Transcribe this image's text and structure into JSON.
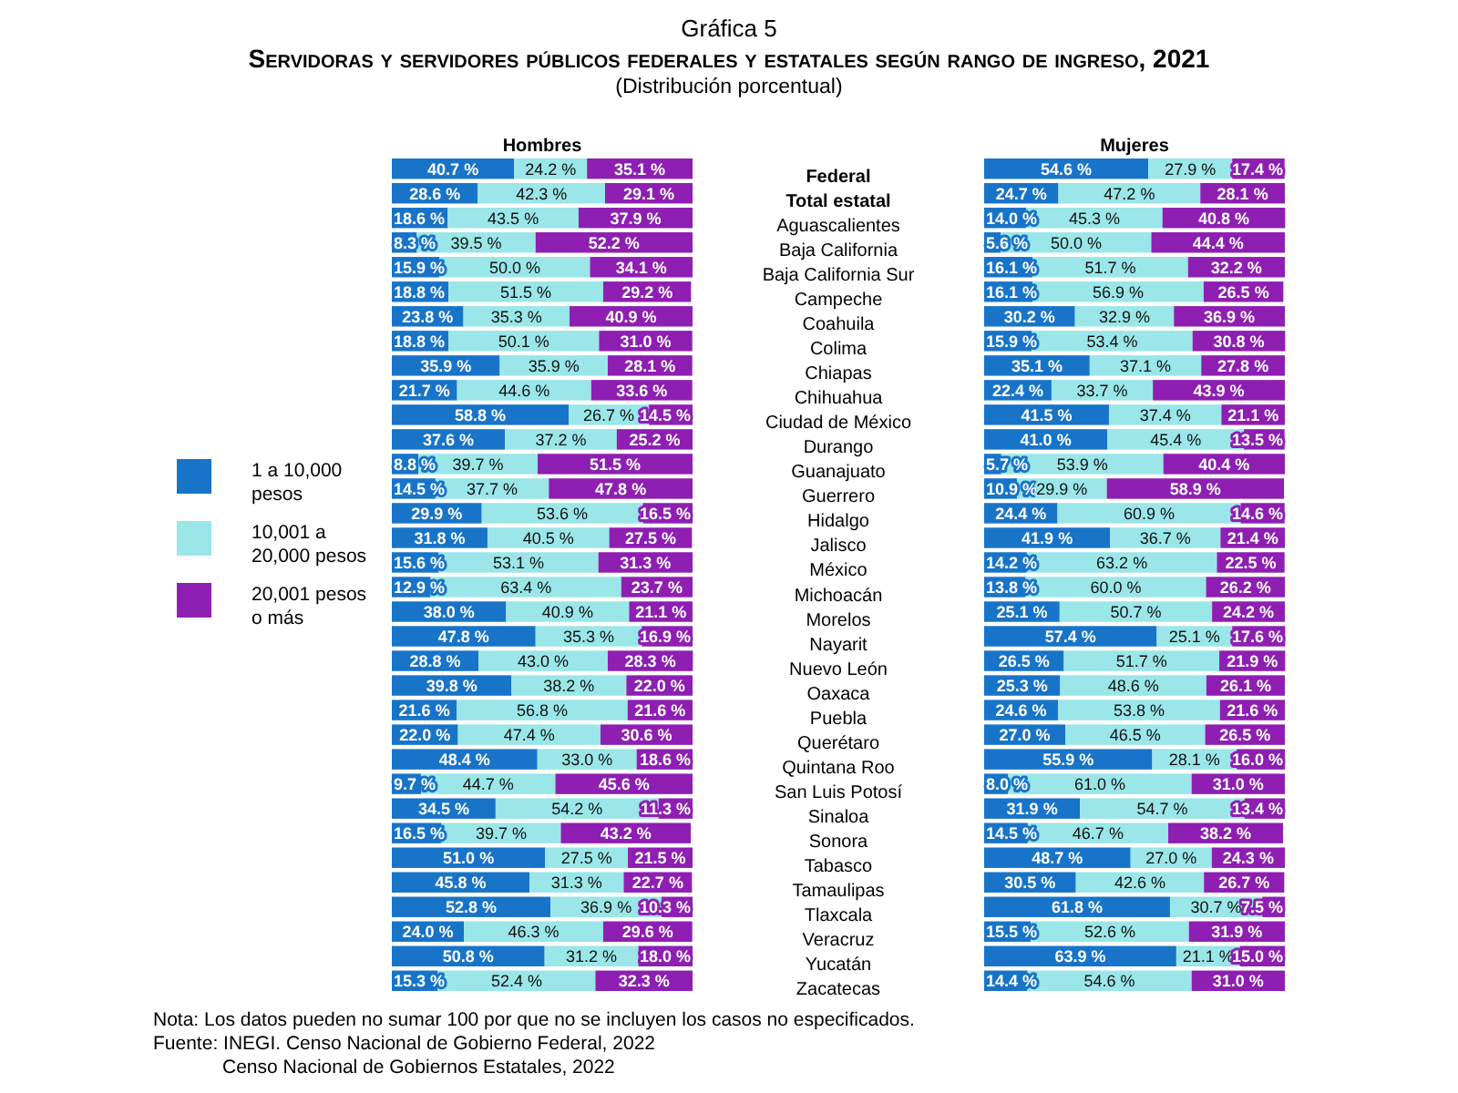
{
  "chart_data": [
    {
      "type": "other",
      "title": "Gráfica 5",
      "subtitle": "Servidoras y servidores públicos federales y estatales según rango de ingreso, 2021",
      "annotations": [
        "(Distribución porcentual)",
        "Nota:     Los datos pueden no sumar 100 por que no se incluyen los casos no especificados.",
        "Fuente: INEGI. Censo Nacional de Gobierno Federal, 2022",
        "Censo Nacional de Gobiernos Estatales, 2022"
      ]
    },
    {
      "type": "bar",
      "orientation": "horizontal",
      "stacked": true,
      "title": "Hombres",
      "legend": "left",
      "tick_labels": "y",
      "xlim": [
        0,
        100
      ],
      "categories": [
        "Federal",
        "Total estatal",
        "Aguascalientes",
        "Baja California",
        "Baja California Sur",
        "Campeche",
        "Coahuila",
        "Colima",
        "Chiapas",
        "Chihuahua",
        "Ciudad de México",
        "Durango",
        "Guanajuato",
        "Guerrero",
        "Hidalgo",
        "Jalisco",
        "México",
        "Michoacán",
        "Morelos",
        "Nayarit",
        "Nuevo León",
        "Oaxaca",
        "Puebla",
        "Querétaro",
        "Quintana Roo",
        "San Luis Potosí",
        "Sinaloa",
        "Sonora",
        "Tabasco",
        "Tamaulipas",
        "Tlaxcala",
        "Veracruz",
        "Yucatán",
        "Zacatecas"
      ],
      "series": [
        {
          "name": "1 a 10,000 pesos",
          "color": "#1874c8",
          "values": [
            40.7,
            28.6,
            18.6,
            8.3,
            15.9,
            18.8,
            23.8,
            18.8,
            35.9,
            21.7,
            58.8,
            37.6,
            8.8,
            14.5,
            29.9,
            31.8,
            15.6,
            12.9,
            38.0,
            47.8,
            28.8,
            39.8,
            21.6,
            22.0,
            48.4,
            9.7,
            34.5,
            16.5,
            51.0,
            45.8,
            52.8,
            24.0,
            50.8,
            15.3
          ],
          "value_labels": [
            "40.7 %",
            "28.6 %",
            "18.6 %",
            "8.3 %",
            "15.9 %",
            "18.8 %",
            "23.8 %",
            "18.8 %",
            "35.9 %",
            "21.7 %",
            "58.8 %",
            "37.6 %",
            "8.8 %",
            "14.5 %",
            "29.9 %",
            "31.8 %",
            "15.6 %",
            "12.9 %",
            "38.0 %",
            "47.8 %",
            "28.8 %",
            "39.8 %",
            "21.6 %",
            "22.0 %",
            "48.4 %",
            "9.7 %",
            "34.5 %",
            "16.5 %",
            "51.0 %",
            "45.8 %",
            "52.8 %",
            "24.0 %",
            "50.8 %",
            "15.3 %"
          ]
        },
        {
          "name": "10,001 a 20,000 pesos",
          "color": "#9ae6e8",
          "values": [
            24.2,
            42.3,
            43.5,
            39.5,
            50.0,
            51.5,
            35.3,
            50.1,
            35.9,
            44.6,
            26.7,
            37.2,
            39.7,
            37.7,
            53.6,
            40.5,
            53.1,
            63.4,
            40.9,
            35.3,
            43.0,
            38.2,
            56.8,
            47.4,
            33.0,
            44.7,
            54.2,
            39.7,
            27.5,
            31.3,
            36.9,
            46.3,
            31.2,
            52.4
          ],
          "value_labels": [
            "24.2 %",
            "42.3 %",
            "43.5 %",
            "39.5 %",
            "50.0 %",
            "51.5 %",
            "35.3 %",
            "50.1 %",
            "35.9 %",
            "44.6 %",
            "26.7 %",
            "37.2 %",
            "39.7 %",
            "37.7 %",
            "53.6 %",
            "40.5 %",
            "53.1 %",
            "63.4 %",
            "40.9 %",
            "35.3 %",
            "43.0 %",
            "38.2 %",
            "56.8 %",
            "47.4 %",
            "33.0 %",
            "44.7 %",
            "54.2 %",
            "39.7 %",
            "27.5 %",
            "31.3 %",
            "36.9 %",
            "46.3 %",
            "31.2 %",
            "52.4 %"
          ]
        },
        {
          "name": "20,001 pesos o más",
          "color": "#8e1fb2",
          "values": [
            35.1,
            29.1,
            37.9,
            52.2,
            34.1,
            29.2,
            40.9,
            31.0,
            28.1,
            33.6,
            14.5,
            25.2,
            51.5,
            47.8,
            16.5,
            27.5,
            31.3,
            23.7,
            21.1,
            16.9,
            28.3,
            22.0,
            21.6,
            30.6,
            18.6,
            45.6,
            11.3,
            43.2,
            21.5,
            22.7,
            10.3,
            29.6,
            18.0,
            32.3
          ],
          "value_labels": [
            "35.1 %",
            "29.1 %",
            "37.9 %",
            "52.2 %",
            "34.1 %",
            "29.2 %",
            "40.9 %",
            "31.0 %",
            "28.1 %",
            "33.6 %",
            "14.5 %",
            "25.2 %",
            "51.5 %",
            "47.8 %",
            "16.5 %",
            "27.5 %",
            "31.3 %",
            "23.7 %",
            "21.1 %",
            "16.9 %",
            "28.3 %",
            "22.0 %",
            "21.6 %",
            "30.6 %",
            "18.6 %",
            "45.6 %",
            "11.3 %",
            "43.2 %",
            "21.5 %",
            "22.7 %",
            "10.3 %",
            "29.6 %",
            "18.0 %",
            "32.3 %"
          ]
        }
      ]
    },
    {
      "type": "bar",
      "orientation": "horizontal",
      "stacked": true,
      "title": "Mujeres",
      "tick_labels": false,
      "xlim": [
        0,
        100
      ],
      "categories": [
        null,
        null,
        null,
        null,
        null,
        null,
        null,
        null,
        null,
        null,
        null,
        null,
        null,
        null,
        null,
        null,
        null,
        null,
        null,
        null,
        null,
        null,
        null,
        null,
        null,
        null,
        null,
        null,
        null,
        null,
        null,
        null,
        null,
        null
      ],
      "series": [
        {
          "color": "#1874c8",
          "values": [
            54.6,
            24.7,
            14.0,
            5.6,
            16.1,
            16.1,
            30.2,
            15.9,
            35.1,
            22.4,
            41.5,
            41.0,
            5.7,
            10.9,
            24.4,
            41.9,
            14.2,
            13.8,
            25.1,
            57.4,
            26.5,
            25.3,
            24.6,
            27.0,
            55.9,
            8.0,
            31.9,
            14.5,
            48.7,
            30.5,
            61.8,
            15.5,
            63.9,
            14.4
          ],
          "value_labels": [
            "54.6 %",
            "24.7 %",
            "14.0 %",
            "5.6 %",
            "16.1 %",
            "16.1 %",
            "30.2 %",
            "15.9 %",
            "35.1 %",
            "22.4 %",
            "41.5 %",
            "41.0 %",
            "5.7 %",
            "10.9 %",
            "24.4 %",
            "41.9 %",
            "14.2 %",
            "13.8 %",
            "25.1 %",
            "57.4 %",
            "26.5 %",
            "25.3 %",
            "24.6 %",
            "27.0 %",
            "55.9 %",
            "8.0 %",
            "31.9 %",
            "14.5 %",
            "48.7 %",
            "30.5 %",
            "61.8 %",
            "15.5 %",
            "63.9 %",
            "14.4 %"
          ]
        },
        {
          "color": "#9ae6e8",
          "values": [
            27.9,
            47.2,
            45.3,
            50.0,
            51.7,
            56.9,
            32.9,
            53.4,
            37.1,
            33.7,
            37.4,
            45.4,
            53.9,
            29.9,
            60.9,
            36.7,
            63.2,
            60.0,
            50.7,
            25.1,
            51.7,
            48.6,
            53.8,
            46.5,
            28.1,
            61.0,
            54.7,
            46.7,
            27.0,
            42.6,
            30.7,
            52.6,
            21.1,
            54.6
          ],
          "value_labels": [
            "27.9 %",
            "47.2 %",
            "45.3 %",
            "50.0 %",
            "51.7 %",
            "56.9 %",
            "32.9 %",
            "53.4 %",
            "37.1 %",
            "33.7 %",
            "37.4 %",
            "45.4 %",
            "53.9 %",
            "29.9 %",
            "60.9 %",
            "36.7 %",
            "63.2 %",
            "60.0 %",
            "50.7 %",
            "25.1 %",
            "51.7 %",
            "48.6 %",
            "53.8 %",
            "46.5 %",
            "28.1 %",
            "61.0 %",
            "54.7 %",
            "46.7 %",
            "27.0 %",
            "42.6 %",
            "30.7 %",
            "52.6 %",
            "21.1 %",
            "54.6 %"
          ]
        },
        {
          "color": "#8e1fb2",
          "values": [
            17.4,
            28.1,
            40.8,
            44.4,
            32.2,
            26.5,
            36.9,
            30.8,
            27.8,
            43.9,
            21.1,
            13.5,
            40.4,
            58.9,
            14.6,
            21.4,
            22.5,
            26.2,
            24.2,
            17.6,
            21.9,
            26.1,
            21.6,
            26.5,
            16.0,
            31.0,
            13.4,
            38.2,
            24.3,
            26.7,
            7.5,
            31.9,
            15.0,
            31.0
          ],
          "value_labels": [
            "17.4 %",
            "28.1 %",
            "40.8 %",
            "44.4 %",
            "32.2 %",
            "26.5 %",
            "36.9 %",
            "30.8 %",
            "27.8 %",
            "43.9 %",
            "21.1 %",
            "13.5 %",
            "40.4 %",
            "58.9 %",
            "14.6 %",
            "21.4 %",
            "22.5 %",
            "26.2 %",
            "24.2 %",
            "17.6 %",
            "21.9 %",
            "26.1 %",
            "21.6 %",
            "26.5 %",
            "16.0 %",
            "31.0 %",
            "13.4 %",
            "38.2 %",
            "24.3 %",
            "26.7 %",
            "7.5 %",
            "31.9 %",
            "15.0 %",
            "31.0 %"
          ]
        }
      ]
    }
  ]
}
